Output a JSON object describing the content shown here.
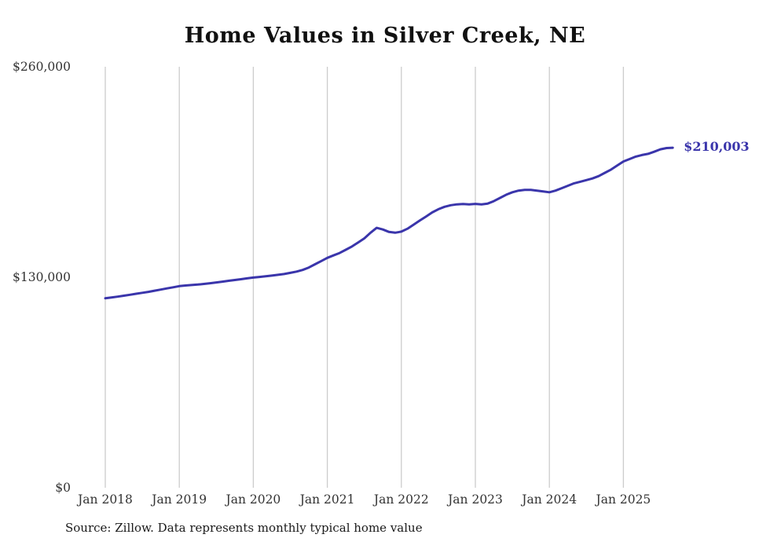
{
  "chart_data": {
    "type": "line",
    "title": "Home Values in Silver Creek, NE",
    "source_note": "Source: Zillow. Data represents monthly typical home value",
    "end_label": "$210,003",
    "final_value": 210003,
    "line_color": "#3a35ab",
    "grid_color": "#cccccc",
    "tick_color": "#333333",
    "ylim": [
      0,
      260000
    ],
    "y_ticks": [
      0,
      130000,
      260000
    ],
    "y_tick_labels": [
      "$0",
      "$130,000",
      "$260,000"
    ],
    "x_tick_labels": [
      "Jan 2018",
      "Jan 2019",
      "Jan 2020",
      "Jan 2021",
      "Jan 2022",
      "Jan 2023",
      "Jan 2024",
      "Jan 2025"
    ],
    "x_start": "Jan 2018",
    "x_end": "Sep 2025",
    "series": [
      {
        "name": "Monthly typical home value",
        "monthly_values": [
          117000,
          117500,
          118000,
          118600,
          119200,
          119800,
          120400,
          121000,
          121700,
          122400,
          123100,
          123800,
          124500,
          124900,
          125200,
          125500,
          125900,
          126300,
          126800,
          127300,
          127800,
          128300,
          128800,
          129300,
          129800,
          130200,
          130600,
          131000,
          131500,
          132000,
          132700,
          133500,
          134500,
          136000,
          138000,
          140000,
          142000,
          143500,
          145000,
          147000,
          149000,
          151500,
          154000,
          157500,
          160500,
          159500,
          158000,
          157500,
          158200,
          160000,
          162500,
          165000,
          167500,
          170000,
          172000,
          173500,
          174500,
          175000,
          175200,
          175000,
          175300,
          175000,
          175500,
          177000,
          179000,
          181000,
          182500,
          183500,
          184000,
          184000,
          183500,
          183000,
          182500,
          183500,
          185000,
          186500,
          188000,
          189000,
          190000,
          191000,
          192500,
          194500,
          196500,
          199000,
          201500,
          203000,
          204500,
          205500,
          206200,
          207500,
          209000,
          209800,
          210003
        ]
      }
    ]
  }
}
